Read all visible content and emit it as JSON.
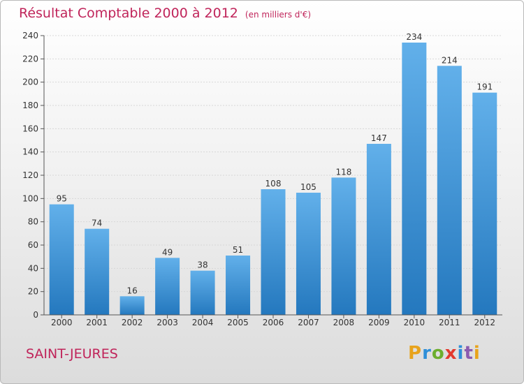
{
  "title": "Résultat Comptable 2000 à 2012",
  "unit_note": "(en milliers d'€)",
  "commune": "SAINT-JEURES",
  "logo": {
    "letters": [
      "P",
      "r",
      "o",
      "x",
      "i",
      "t",
      "i"
    ],
    "colors": [
      "#e8a31c",
      "#2f8fd8",
      "#6cae2e",
      "#e23a2e",
      "#2f8fd8",
      "#8b5bb0",
      "#e8a31c"
    ]
  },
  "colors": {
    "bar_top": "#62b0ea",
    "bar_bottom": "#2478be",
    "title": "#c0245a"
  },
  "chart_data": {
    "type": "bar",
    "categories": [
      "2000",
      "2001",
      "2002",
      "2003",
      "2004",
      "2005",
      "2006",
      "2007",
      "2008",
      "2009",
      "2010",
      "2011",
      "2012"
    ],
    "values": [
      95,
      74,
      16,
      49,
      38,
      51,
      108,
      105,
      118,
      147,
      234,
      214,
      191
    ],
    "ylim": [
      0,
      240
    ],
    "yticks": [
      0,
      20,
      40,
      60,
      80,
      100,
      120,
      140,
      160,
      180,
      200,
      220,
      240
    ],
    "grid": true
  }
}
